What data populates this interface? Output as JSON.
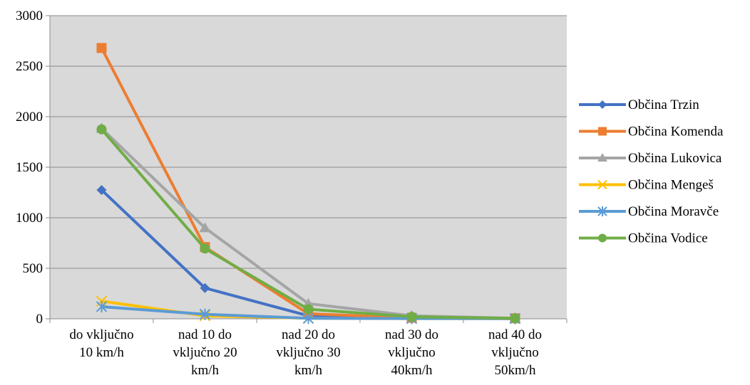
{
  "chart_data": {
    "type": "line",
    "categories": [
      [
        "do vključno",
        "10 km/h"
      ],
      [
        "nad 10 do",
        "vključno 20",
        "km/h"
      ],
      [
        "nad 20 do",
        "vključno 30",
        "km/h"
      ],
      [
        "nad 30 do",
        "vključno",
        "40km/h"
      ],
      [
        "nad 40 do",
        "vključno",
        "50km/h"
      ]
    ],
    "ylim": [
      0,
      3000
    ],
    "yticks": [
      "0",
      "500",
      "1000",
      "1500",
      "2000",
      "2500",
      "3000"
    ],
    "grid": true,
    "legend_position": "right",
    "plot_background": "#d9d9d9",
    "series": [
      {
        "name": "Občina Trzin",
        "color": "#4472c4",
        "marker": "diamond",
        "values": [
          1275,
          305,
          30,
          10,
          5
        ]
      },
      {
        "name": "Občina Komenda",
        "color": "#ed7d31",
        "marker": "square",
        "values": [
          2680,
          710,
          50,
          10,
          5
        ]
      },
      {
        "name": "Občina Lukovica",
        "color": "#a5a5a5",
        "marker": "triangle",
        "values": [
          1885,
          900,
          150,
          30,
          5
        ]
      },
      {
        "name": "Občina Mengeš",
        "color": "#ffc000",
        "marker": "x",
        "values": [
          175,
          30,
          5,
          3,
          2
        ]
      },
      {
        "name": "Občina Moravče",
        "color": "#5b9bd5",
        "marker": "star",
        "values": [
          120,
          45,
          5,
          3,
          2
        ]
      },
      {
        "name": "Občina Vodice",
        "color": "#70ad47",
        "marker": "circle",
        "values": [
          1875,
          695,
          95,
          20,
          5
        ]
      }
    ]
  }
}
